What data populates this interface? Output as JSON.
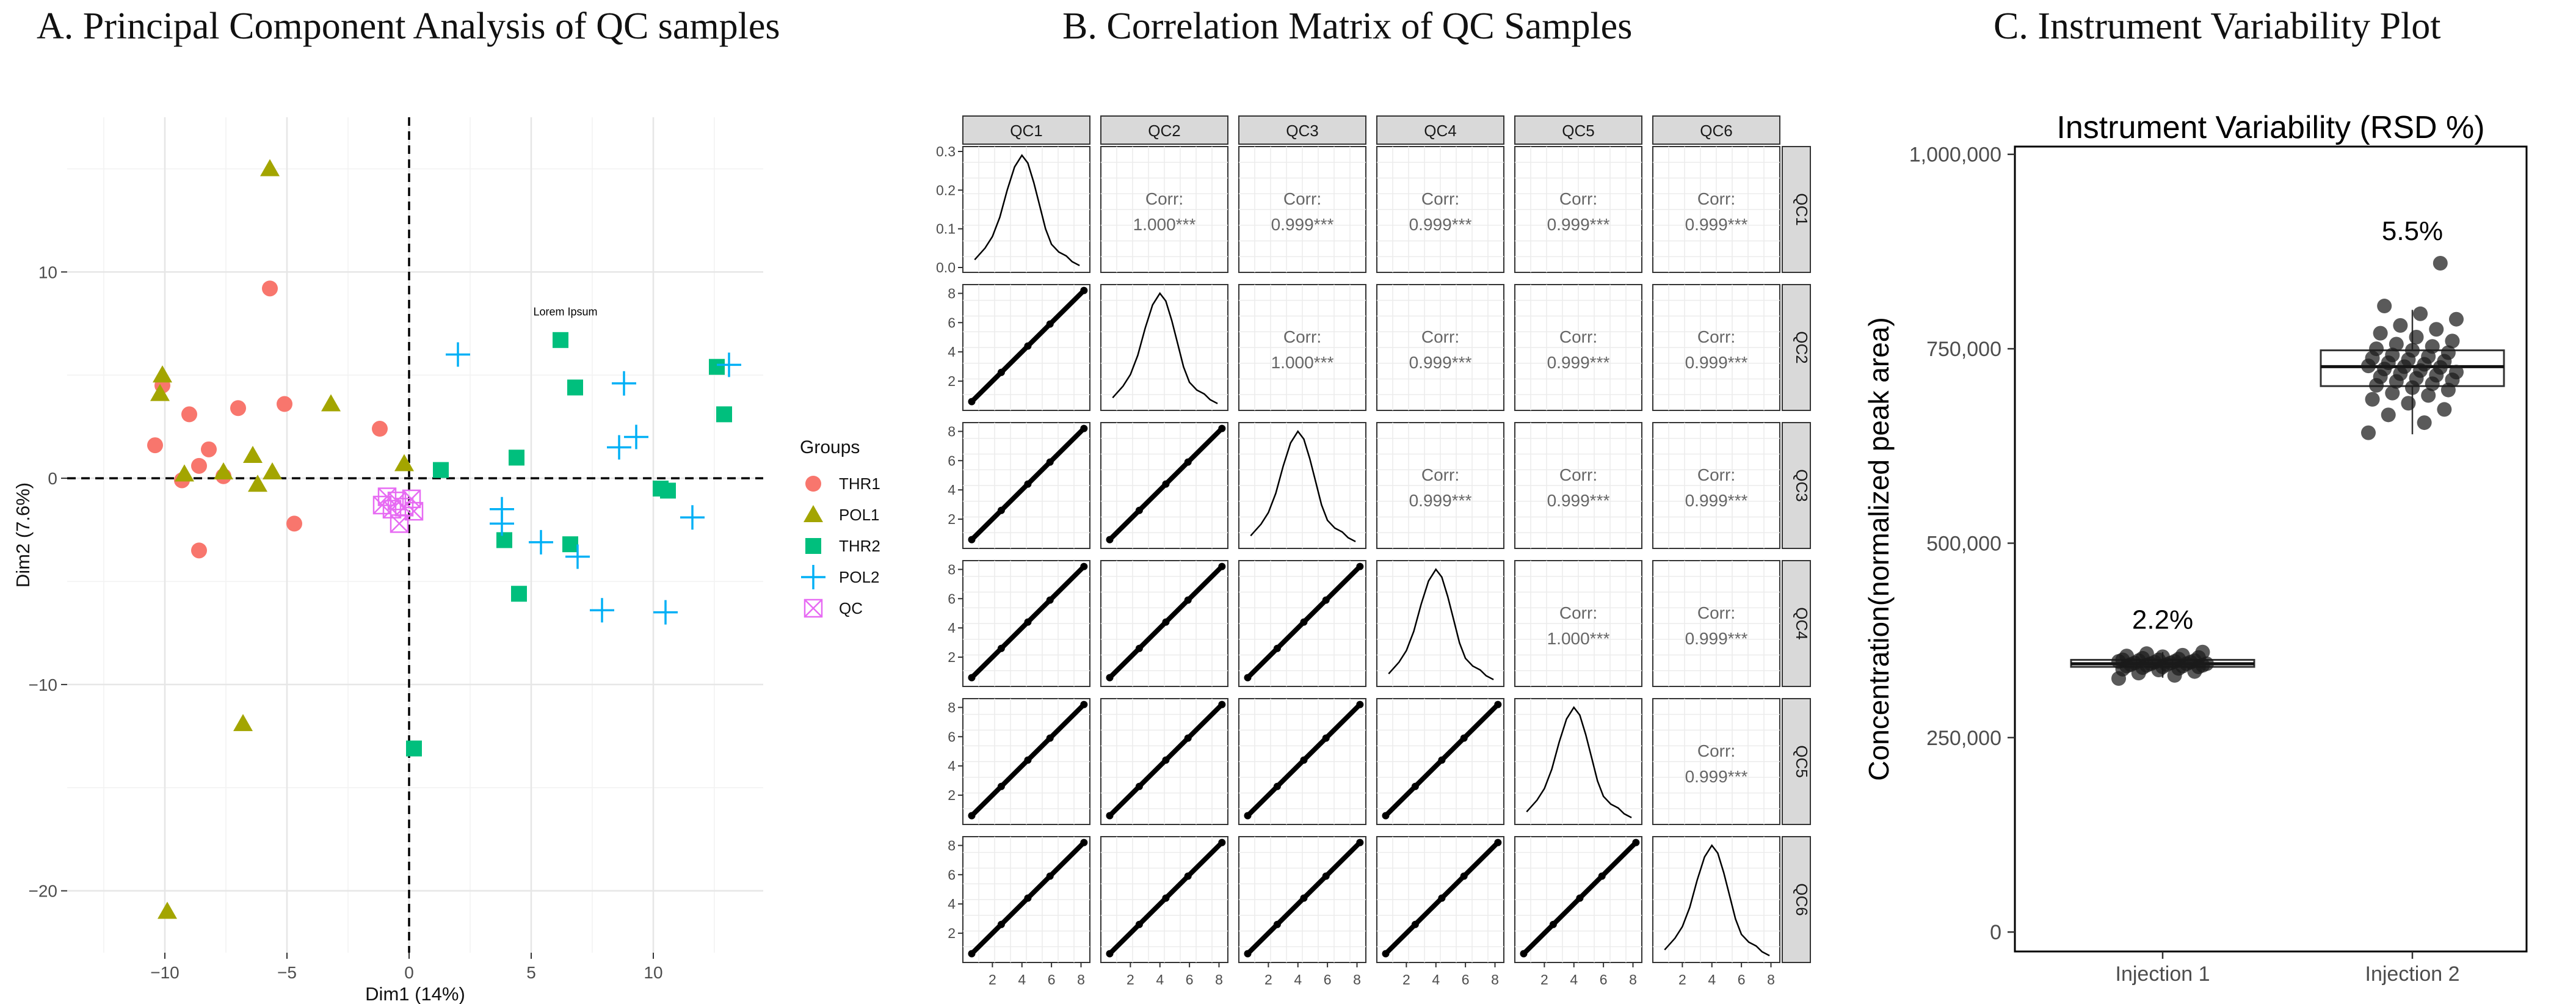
{
  "panel_titles": {
    "a": "A. Principal Component Analysis of QC samples",
    "b": "B. Correlation Matrix of QC Samples",
    "c": "C. Instrument Variability Plot"
  },
  "colors": {
    "THR1": "#F8766D",
    "POL1": "#A3A500",
    "THR2": "#00BF7D",
    "POL2": "#00B0F6",
    "QC": "#E76BF3"
  },
  "chart_data": [
    {
      "type": "scatter",
      "xlabel": "Dim1 (14%)",
      "ylabel": "Dim2 (7.6%)",
      "xlim": [
        -14,
        14.5
      ],
      "ylim": [
        -23,
        17.5
      ],
      "xticks": [
        -10,
        -5,
        0,
        5,
        10
      ],
      "yticks": [
        -20,
        -10,
        0,
        10
      ],
      "annotation": {
        "text": "Lorem Ipsum",
        "x": 6.4,
        "y": 7.9
      },
      "legend_title": "Groups",
      "series": [
        {
          "name": "THR1",
          "shape": "circle",
          "points": [
            [
              -10.4,
              1.6
            ],
            [
              -10.1,
              4.5
            ],
            [
              -9.3,
              -0.1
            ],
            [
              -9.0,
              3.1
            ],
            [
              -8.6,
              0.6
            ],
            [
              -8.2,
              1.4
            ],
            [
              -7.6,
              0.1
            ],
            [
              -8.6,
              -3.5
            ],
            [
              -7.0,
              3.4
            ],
            [
              -5.7,
              9.2
            ],
            [
              -5.1,
              3.6
            ],
            [
              -4.7,
              -2.2
            ],
            [
              -1.2,
              2.4
            ]
          ]
        },
        {
          "name": "POL1",
          "shape": "triangle",
          "points": [
            [
              -5.7,
              15.0
            ],
            [
              -10.2,
              4.1
            ],
            [
              -10.1,
              5.0
            ],
            [
              -9.2,
              0.2
            ],
            [
              -7.6,
              0.3
            ],
            [
              -6.4,
              1.1
            ],
            [
              -6.2,
              -0.3
            ],
            [
              -5.6,
              0.3
            ],
            [
              -3.2,
              3.6
            ],
            [
              -0.2,
              0.7
            ],
            [
              -6.8,
              -11.9
            ],
            [
              -9.9,
              -21.0
            ]
          ]
        },
        {
          "name": "THR2",
          "shape": "square",
          "points": [
            [
              1.3,
              0.4
            ],
            [
              4.4,
              1.0
            ],
            [
              3.9,
              -3.0
            ],
            [
              4.5,
              -5.6
            ],
            [
              6.2,
              6.7
            ],
            [
              6.8,
              4.4
            ],
            [
              6.6,
              -3.2
            ],
            [
              10.3,
              -0.5
            ],
            [
              10.6,
              -0.6
            ],
            [
              12.6,
              5.4
            ],
            [
              12.9,
              3.1
            ],
            [
              0.2,
              -13.1
            ]
          ]
        },
        {
          "name": "POL2",
          "shape": "plus",
          "points": [
            [
              2.0,
              6.0
            ],
            [
              3.8,
              -1.5
            ],
            [
              3.8,
              -2.2
            ],
            [
              5.4,
              -3.1
            ],
            [
              6.9,
              -3.8
            ],
            [
              8.6,
              1.5
            ],
            [
              8.8,
              4.6
            ],
            [
              9.3,
              2.0
            ],
            [
              7.9,
              -6.4
            ],
            [
              10.5,
              -6.5
            ],
            [
              11.6,
              -1.9
            ],
            [
              13.1,
              5.5
            ]
          ]
        },
        {
          "name": "QC",
          "shape": "boxcross",
          "points": [
            [
              -1.1,
              -1.3
            ],
            [
              -0.9,
              -0.9
            ],
            [
              -0.7,
              -1.5
            ],
            [
              -0.5,
              -1.1
            ],
            [
              -0.4,
              -2.2
            ],
            [
              -0.2,
              -1.4
            ],
            [
              0.1,
              -1.0
            ],
            [
              0.2,
              -1.6
            ]
          ]
        }
      ]
    },
    {
      "type": "scatter-matrix",
      "variables": [
        "QC1",
        "QC2",
        "QC3",
        "QC4",
        "QC5",
        "QC6"
      ],
      "corr_label": "Corr:",
      "correlations": [
        [
          "",
          "1.000***",
          "0.999***",
          "0.999***",
          "0.999***",
          "0.999***"
        ],
        [
          "",
          "",
          "1.000***",
          "0.999***",
          "0.999***",
          "0.999***"
        ],
        [
          "",
          "",
          "",
          "0.999***",
          "0.999***",
          "0.999***"
        ],
        [
          "",
          "",
          "",
          "",
          "1.000***",
          "0.999***"
        ],
        [
          "",
          "",
          "",
          "",
          "",
          "0.999***"
        ],
        [
          "",
          "",
          "",
          "",
          "",
          ""
        ]
      ],
      "scatter_xlim": [
        0,
        8.6
      ],
      "scatter_ylim": [
        0,
        8.6
      ],
      "axis_ticks": [
        2,
        4,
        6,
        8
      ],
      "density_ylim": [
        0,
        0.3
      ],
      "density_yticks": [
        "0.0",
        "0.1",
        "0.2",
        "0.3"
      ],
      "density_curve": [
        [
          0.8,
          0.02
        ],
        [
          1.5,
          0.05
        ],
        [
          2.0,
          0.08
        ],
        [
          2.5,
          0.13
        ],
        [
          3.0,
          0.2
        ],
        [
          3.5,
          0.26
        ],
        [
          4.0,
          0.29
        ],
        [
          4.4,
          0.27
        ],
        [
          4.8,
          0.22
        ],
        [
          5.2,
          0.16
        ],
        [
          5.6,
          0.1
        ],
        [
          6.0,
          0.06
        ],
        [
          6.5,
          0.04
        ],
        [
          7.0,
          0.03
        ],
        [
          7.4,
          0.015
        ],
        [
          7.9,
          0.005
        ]
      ]
    },
    {
      "type": "box",
      "title": "Instrument Variability (RSD %)",
      "ylabel": "Concentration(normalized peak area)",
      "ylim": [
        -25000,
        1010000
      ],
      "yticks": [
        0,
        250000,
        500000,
        750000,
        1000000
      ],
      "ytick_labels": [
        "0",
        "250,000",
        "500,000",
        "750,000",
        "1,000,000"
      ],
      "categories": [
        "Injection 1",
        "Injection 2"
      ],
      "boxes": [
        {
          "label": "Injection 1",
          "rsd": "2.2%",
          "min": 327000,
          "q1": 341000,
          "median": 345000,
          "q3": 350000,
          "max": 360000,
          "points": [
            326000,
            330000,
            333000,
            335000,
            337000,
            338000,
            339000,
            340000,
            341000,
            341000,
            342000,
            342000,
            343000,
            343000,
            344000,
            344000,
            345000,
            345000,
            345000,
            346000,
            346000,
            347000,
            347000,
            348000,
            348000,
            349000,
            349000,
            350000,
            350000,
            351000,
            352000,
            353000,
            354000,
            355000,
            356000,
            358000,
            360000
          ]
        },
        {
          "label": "Injection 2",
          "rsd": "5.5%",
          "min": 640000,
          "q1": 702000,
          "median": 727000,
          "q3": 748000,
          "max": 800000,
          "points": [
            642000,
            655000,
            665000,
            672000,
            680000,
            685000,
            690000,
            693000,
            697000,
            700000,
            703000,
            705000,
            708000,
            710000,
            712000,
            714000,
            716000,
            718000,
            720000,
            722000,
            724000,
            726000,
            727000,
            728000,
            730000,
            732000,
            734000,
            736000,
            738000,
            740000,
            742000,
            745000,
            748000,
            750000,
            753000,
            756000,
            760000,
            765000,
            770000,
            775000,
            780000,
            788000,
            795000,
            805000,
            860000
          ]
        }
      ]
    }
  ]
}
